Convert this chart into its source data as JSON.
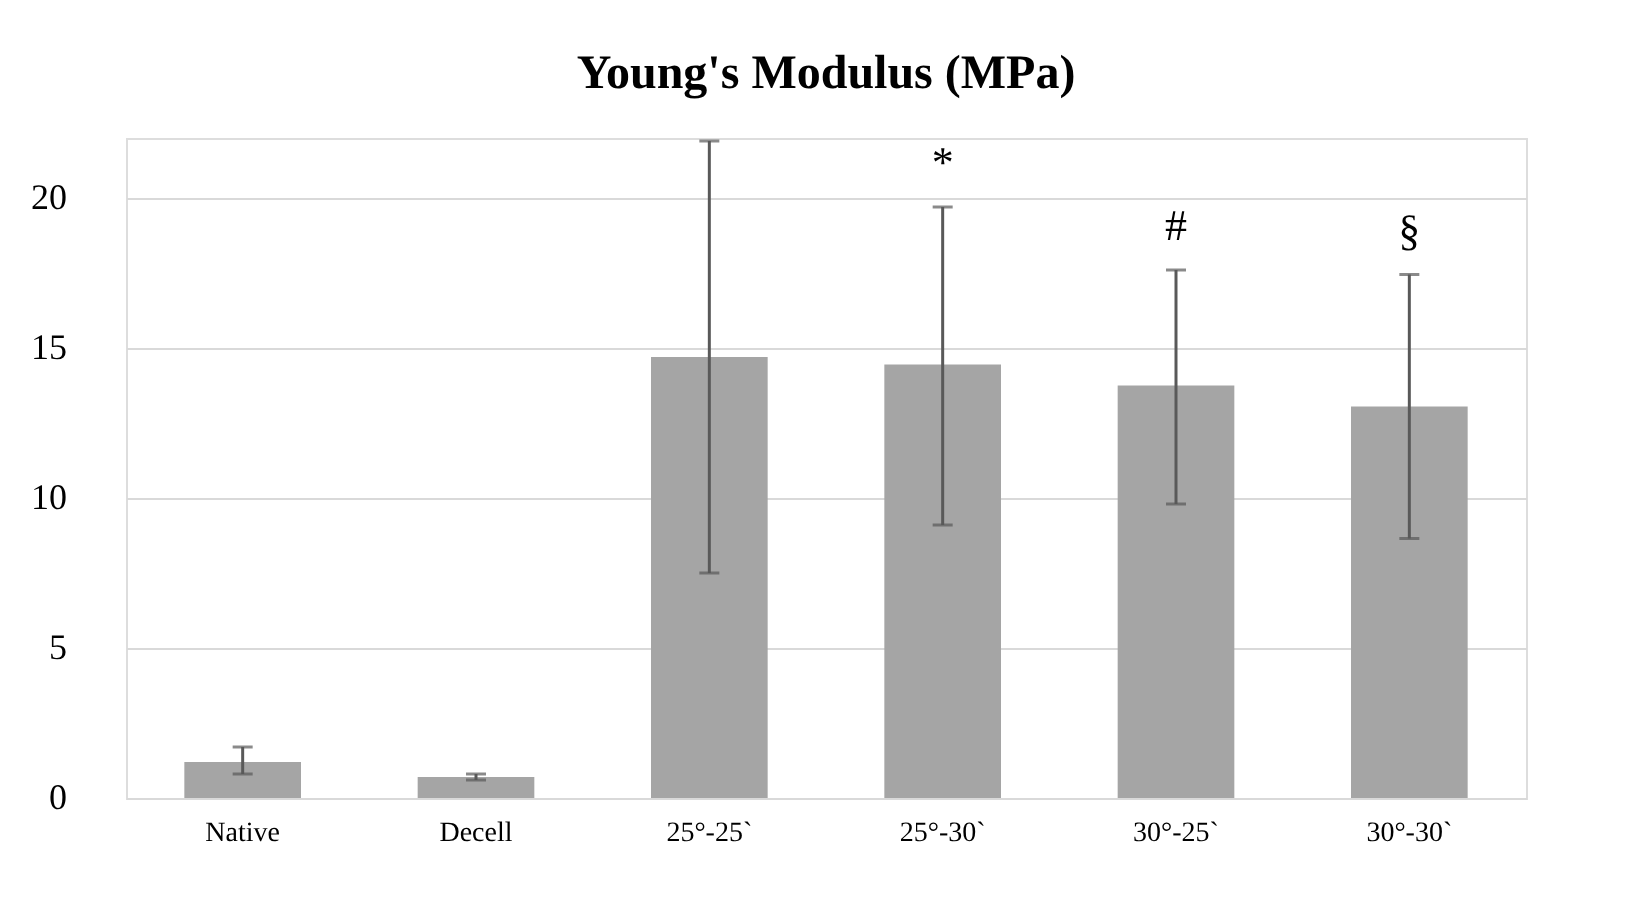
{
  "chart_data": {
    "type": "bar",
    "title": "Young's Modulus (MPa)",
    "categories": [
      "Native",
      "Decell",
      "25°-25`",
      "25°-30`",
      "30°-25`",
      "30°-30`"
    ],
    "values": [
      1.2,
      0.7,
      14.7,
      14.45,
      13.75,
      13.05
    ],
    "errors": [
      [
        0.8,
        1.7
      ],
      [
        0.6,
        0.8
      ],
      [
        7.5,
        21.9
      ],
      [
        9.1,
        19.7
      ],
      [
        9.8,
        17.6
      ],
      [
        8.65,
        17.45
      ]
    ],
    "color": "#a5a5a5",
    "ylim": [
      0,
      22
    ],
    "yticks": [
      0,
      5,
      10,
      15,
      20
    ],
    "grid": "y",
    "annotations": [
      "*",
      "#",
      "§"
    ]
  }
}
